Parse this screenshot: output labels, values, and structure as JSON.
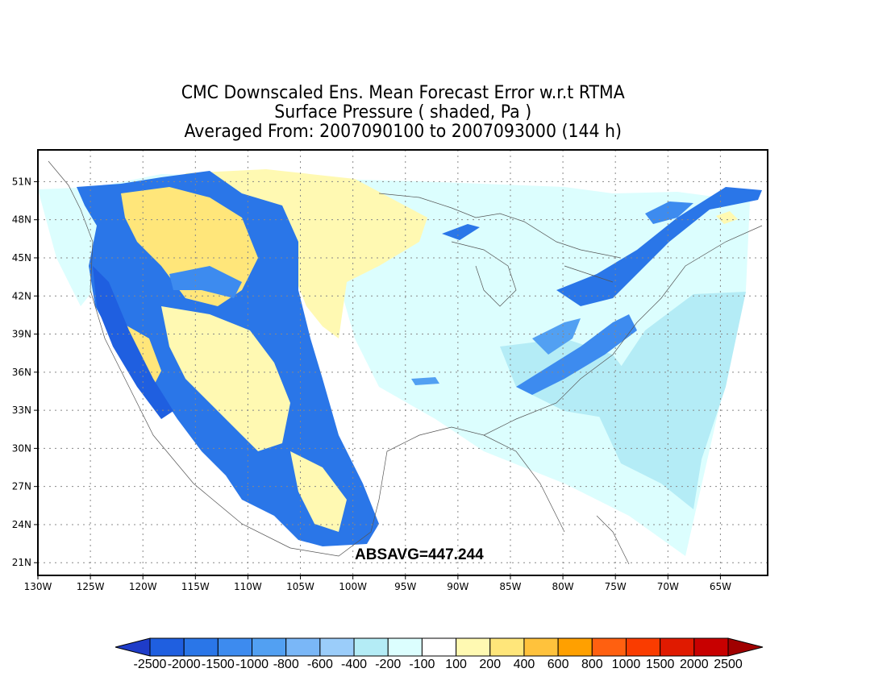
{
  "title": {
    "line1": "CMC Downscaled Ens. Mean Forecast Error w.r.t RTMA",
    "line2": "Surface Pressure ( shaded, Pa )",
    "line3": "Averaged From: 2007090100 to 2007093000 (144 h)"
  },
  "map": {
    "statistic_label": "ABSAVG=447.244",
    "lon_ticks": [
      "130W",
      "125W",
      "120W",
      "115W",
      "110W",
      "105W",
      "100W",
      "95W",
      "90W",
      "85W",
      "80W",
      "75W",
      "70W",
      "65W"
    ],
    "lat_ticks": [
      "51N",
      "48N",
      "45N",
      "42N",
      "39N",
      "36N",
      "33N",
      "30N",
      "27N",
      "24N",
      "21N"
    ],
    "lon_range": [
      -130,
      -60.5
    ],
    "lat_range": [
      20,
      53.5
    ],
    "grid": true
  },
  "colorbar": {
    "labels": [
      "-2500",
      "-2000",
      "-1500",
      "-1000",
      "-800",
      "-600",
      "-400",
      "-200",
      "-100",
      "100",
      "200",
      "400",
      "600",
      "800",
      "1000",
      "1500",
      "2000",
      "2500"
    ],
    "colors": {
      "under": "#1e3cc8",
      "bins": [
        "#1f5fe0",
        "#2a76e8",
        "#3d8bef",
        "#52a0f2",
        "#7ab7f7",
        "#9bcdfa",
        "#b4ecf6",
        "#dcfefe",
        "#ffffff",
        "#fff9b2",
        "#ffe67a",
        "#ffc23c",
        "#ffa000",
        "#ff6010",
        "#fa3c00",
        "#e01a00",
        "#c80000"
      ],
      "over": "#a00000"
    }
  }
}
